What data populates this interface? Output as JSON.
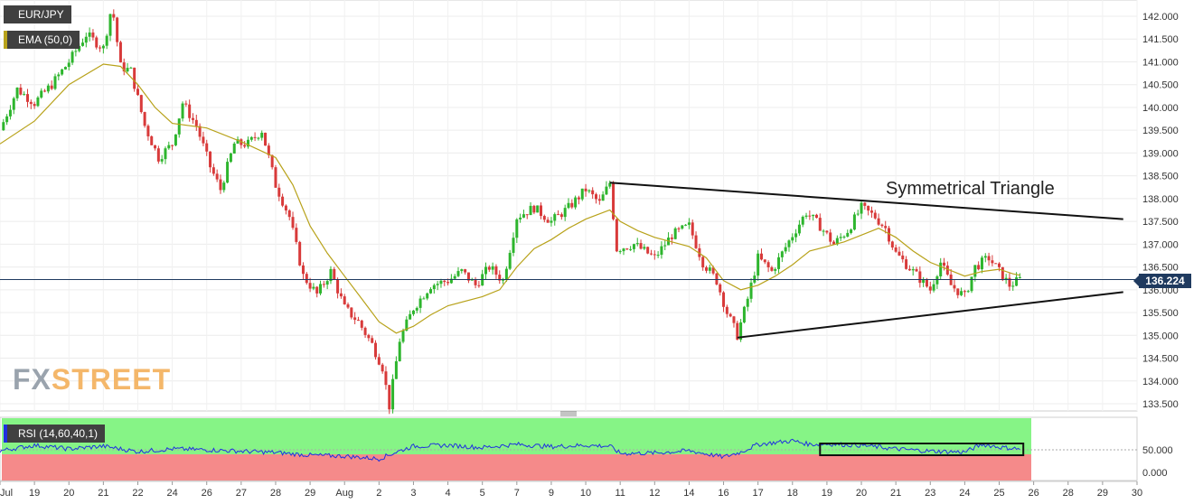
{
  "chart_data": [
    {
      "type": "candlestick",
      "title": "EUR/JPY",
      "indicator": "EMA (50,0)",
      "yticks": [
        "133.500",
        "134.000",
        "134.500",
        "135.000",
        "135.500",
        "136.000",
        "136.500",
        "137.000",
        "137.500",
        "138.000",
        "138.500",
        "139.000",
        "139.500",
        "140.000",
        "140.500",
        "141.000",
        "141.500",
        "142.000"
      ],
      "ylim": [
        133.4,
        142.3
      ],
      "current_price": "136.224",
      "xticks": [
        "Jul",
        "19",
        "20",
        "21",
        "22",
        "24",
        "26",
        "27",
        "28",
        "29",
        "Aug",
        "2",
        "3",
        "4",
        "5",
        "7",
        "9",
        "10",
        "11",
        "12",
        "14",
        "16",
        "17",
        "18",
        "19",
        "20",
        "21",
        "23",
        "24",
        "25",
        "26",
        "28",
        "29",
        "30"
      ],
      "annotation": "Symmetrical Triangle",
      "price_path": [
        [
          0,
          139.5
        ],
        [
          0.5,
          140.4
        ],
        [
          1,
          140.1
        ],
        [
          1.5,
          140.5
        ],
        [
          2,
          141.0
        ],
        [
          2.5,
          141.6
        ],
        [
          3,
          141.3
        ],
        [
          3.25,
          142.25
        ],
        [
          3.5,
          140.9
        ],
        [
          3.8,
          140.8
        ],
        [
          4.2,
          139.6
        ],
        [
          4.6,
          138.9
        ],
        [
          5,
          139.2
        ],
        [
          5.3,
          140.1
        ],
        [
          5.7,
          139.6
        ],
        [
          6.1,
          138.7
        ],
        [
          6.4,
          138.2
        ],
        [
          6.8,
          139.2
        ],
        [
          7.2,
          139.2
        ],
        [
          7.6,
          139.5
        ],
        [
          8,
          138.3
        ],
        [
          8.4,
          137.6
        ],
        [
          8.8,
          136.3
        ],
        [
          9.2,
          135.9
        ],
        [
          9.6,
          136.4
        ],
        [
          10,
          135.6
        ],
        [
          10.4,
          135.3
        ],
        [
          10.8,
          134.8
        ],
        [
          11.1,
          134.3
        ],
        [
          11.3,
          133.45
        ],
        [
          11.6,
          134.9
        ],
        [
          12,
          135.6
        ],
        [
          12.5,
          136.1
        ],
        [
          13,
          136.2
        ],
        [
          13.4,
          136.4
        ],
        [
          13.8,
          136.1
        ],
        [
          14.2,
          136.5
        ],
        [
          14.6,
          136.2
        ],
        [
          15,
          137.6
        ],
        [
          15.5,
          137.8
        ],
        [
          16,
          137.5
        ],
        [
          16.5,
          137.8
        ],
        [
          17,
          138.2
        ],
        [
          17.4,
          137.9
        ],
        [
          17.7,
          138.35
        ],
        [
          17.9,
          136.9
        ],
        [
          18.4,
          137.0
        ],
        [
          19,
          136.7
        ],
        [
          19.5,
          137.2
        ],
        [
          20,
          137.4
        ],
        [
          20.4,
          136.6
        ],
        [
          20.8,
          136.2
        ],
        [
          21.1,
          135.5
        ],
        [
          21.4,
          135.0
        ],
        [
          21.7,
          135.8
        ],
        [
          22,
          136.7
        ],
        [
          22.4,
          136.4
        ],
        [
          23,
          137.2
        ],
        [
          23.4,
          137.7
        ],
        [
          23.8,
          137.4
        ],
        [
          24.2,
          137.0
        ],
        [
          24.6,
          137.3
        ],
        [
          25,
          137.8
        ],
        [
          25.4,
          137.6
        ],
        [
          25.7,
          137.35
        ],
        [
          26,
          136.8
        ],
        [
          26.5,
          136.4
        ],
        [
          27,
          136.0
        ],
        [
          27.3,
          136.6
        ],
        [
          27.6,
          136.1
        ],
        [
          28,
          135.85
        ],
        [
          28.3,
          136.5
        ],
        [
          28.7,
          136.7
        ],
        [
          29,
          136.4
        ],
        [
          29.3,
          136.1
        ],
        [
          29.6,
          136.22
        ]
      ],
      "ema_path": [
        [
          0,
          139.2
        ],
        [
          1,
          139.7
        ],
        [
          2,
          140.5
        ],
        [
          3,
          140.95
        ],
        [
          3.5,
          140.9
        ],
        [
          4,
          140.5
        ],
        [
          4.5,
          140.0
        ],
        [
          5,
          139.65
        ],
        [
          6,
          139.55
        ],
        [
          7,
          139.25
        ],
        [
          8,
          138.9
        ],
        [
          8.5,
          138.3
        ],
        [
          9,
          137.4
        ],
        [
          9.5,
          136.8
        ],
        [
          10,
          136.3
        ],
        [
          10.5,
          135.8
        ],
        [
          11,
          135.3
        ],
        [
          11.5,
          135.05
        ],
        [
          12,
          135.2
        ],
        [
          12.5,
          135.45
        ],
        [
          13,
          135.65
        ],
        [
          14,
          135.85
        ],
        [
          14.5,
          136.0
        ],
        [
          15,
          136.5
        ],
        [
          15.5,
          136.9
        ],
        [
          16,
          137.1
        ],
        [
          16.5,
          137.35
        ],
        [
          17,
          137.55
        ],
        [
          17.7,
          137.75
        ],
        [
          18,
          137.5
        ],
        [
          18.5,
          137.3
        ],
        [
          19,
          137.15
        ],
        [
          19.5,
          137.05
        ],
        [
          20,
          136.95
        ],
        [
          20.5,
          136.7
        ],
        [
          21,
          136.2
        ],
        [
          21.5,
          136.0
        ],
        [
          22,
          136.1
        ],
        [
          22.5,
          136.3
        ],
        [
          23,
          136.55
        ],
        [
          23.5,
          136.85
        ],
        [
          24,
          136.95
        ],
        [
          24.5,
          137.05
        ],
        [
          25,
          137.2
        ],
        [
          25.5,
          137.35
        ],
        [
          26,
          137.15
        ],
        [
          26.5,
          136.85
        ],
        [
          27,
          136.6
        ],
        [
          27.5,
          136.45
        ],
        [
          28,
          136.3
        ],
        [
          28.5,
          136.4
        ],
        [
          29,
          136.45
        ],
        [
          29.4,
          136.35
        ],
        [
          29.6,
          136.32
        ]
      ],
      "trendlines": [
        {
          "name": "upper",
          "points": [
            [
              17.7,
              138.35
            ],
            [
              32.6,
              137.55
            ]
          ]
        },
        {
          "name": "lower",
          "points": [
            [
              21.4,
              134.95
            ],
            [
              32.6,
              135.95
            ]
          ]
        }
      ],
      "horizontal_line": 136.224
    },
    {
      "type": "line",
      "title": "RSI (14,60,40,1)",
      "yticks": [
        "0.000",
        "50.000"
      ],
      "ylim": [
        0,
        100
      ],
      "upper_band": 60,
      "lower_band": 40,
      "rsi_path": [
        [
          0,
          48
        ],
        [
          1,
          60
        ],
        [
          2,
          52
        ],
        [
          3,
          58
        ],
        [
          4,
          46
        ],
        [
          5,
          52
        ],
        [
          6,
          50
        ],
        [
          7,
          47
        ],
        [
          8,
          44
        ],
        [
          9,
          38
        ],
        [
          10,
          36
        ],
        [
          11,
          30
        ],
        [
          11.5,
          45
        ],
        [
          12,
          58
        ],
        [
          13,
          60
        ],
        [
          14,
          55
        ],
        [
          15,
          62
        ],
        [
          16,
          57
        ],
        [
          17,
          60
        ],
        [
          17.7,
          58
        ],
        [
          18,
          42
        ],
        [
          19,
          43
        ],
        [
          20,
          48
        ],
        [
          21,
          34
        ],
        [
          21.5,
          45
        ],
        [
          22,
          62
        ],
        [
          23,
          70
        ],
        [
          23.5,
          62
        ],
        [
          24,
          63
        ],
        [
          25,
          60
        ],
        [
          26,
          52
        ],
        [
          27,
          47
        ],
        [
          28,
          45
        ],
        [
          28.5,
          62
        ],
        [
          29,
          56
        ],
        [
          29.6,
          52
        ]
      ],
      "highlight_box": {
        "x": [
          23.8,
          29.7
        ],
        "y": [
          38,
          64
        ]
      }
    }
  ]
}
